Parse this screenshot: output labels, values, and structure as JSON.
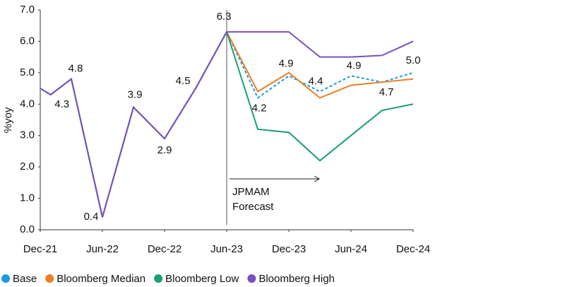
{
  "chart_data": {
    "type": "line",
    "ylabel": "%yoy",
    "x": [
      0,
      1,
      3,
      6,
      9,
      12,
      15,
      18,
      21,
      24,
      27,
      30,
      33,
      36
    ],
    "xlim": [
      0,
      36
    ],
    "xticks": [
      {
        "value": 0,
        "label": "Dec-21"
      },
      {
        "value": 6,
        "label": "Jun-22"
      },
      {
        "value": 12,
        "label": "Dec-22"
      },
      {
        "value": 18,
        "label": "Jun-23"
      },
      {
        "value": 24,
        "label": "Dec-23"
      },
      {
        "value": 30,
        "label": "Jun-24"
      },
      {
        "value": 36,
        "label": "Dec-24"
      }
    ],
    "ylim": [
      0,
      7
    ],
    "yticks": [
      {
        "value": 0,
        "label": "0.0"
      },
      {
        "value": 1,
        "label": "1.0"
      },
      {
        "value": 2,
        "label": "2.0"
      },
      {
        "value": 3,
        "label": "3.0"
      },
      {
        "value": 4,
        "label": "4.0"
      },
      {
        "value": 5,
        "label": "5.0"
      },
      {
        "value": 6,
        "label": "6.0"
      },
      {
        "value": 7,
        "label": "7.0"
      }
    ],
    "grid": false,
    "forecast_start": 18,
    "annotation": [
      "JPMAM",
      "Forecast"
    ],
    "series": [
      {
        "name": "Base",
        "color": "#1a9be0",
        "dashed": true,
        "values": [
          4.5,
          4.3,
          4.8,
          0.4,
          3.9,
          2.9,
          4.5,
          6.3,
          4.2,
          4.9,
          4.4,
          4.9,
          4.7,
          5.0
        ],
        "value_labels": [
          null,
          "4.3",
          "4.8",
          "0.4",
          "3.9",
          "2.9",
          "4.5",
          "6.3",
          "4.2",
          "4.9",
          "4.4",
          "4.9",
          "4.7",
          "5.0"
        ]
      },
      {
        "name": "Bloomberg Median",
        "color": "#ef7d22",
        "values": [
          4.5,
          4.3,
          4.8,
          0.4,
          3.9,
          2.9,
          4.5,
          6.3,
          4.4,
          5.0,
          4.2,
          4.6,
          4.7,
          4.8
        ]
      },
      {
        "name": "Bloomberg Low",
        "color": "#1a9e77",
        "values": [
          4.5,
          4.3,
          4.8,
          0.4,
          3.9,
          2.9,
          4.5,
          6.3,
          3.2,
          3.1,
          2.2,
          3.0,
          3.8,
          4.0
        ]
      },
      {
        "name": "Bloomberg High",
        "color": "#7b4fc0",
        "values": [
          4.5,
          4.3,
          4.8,
          0.4,
          3.9,
          2.9,
          4.5,
          6.3,
          6.3,
          6.3,
          5.5,
          5.5,
          5.55,
          6.0
        ]
      }
    ]
  }
}
